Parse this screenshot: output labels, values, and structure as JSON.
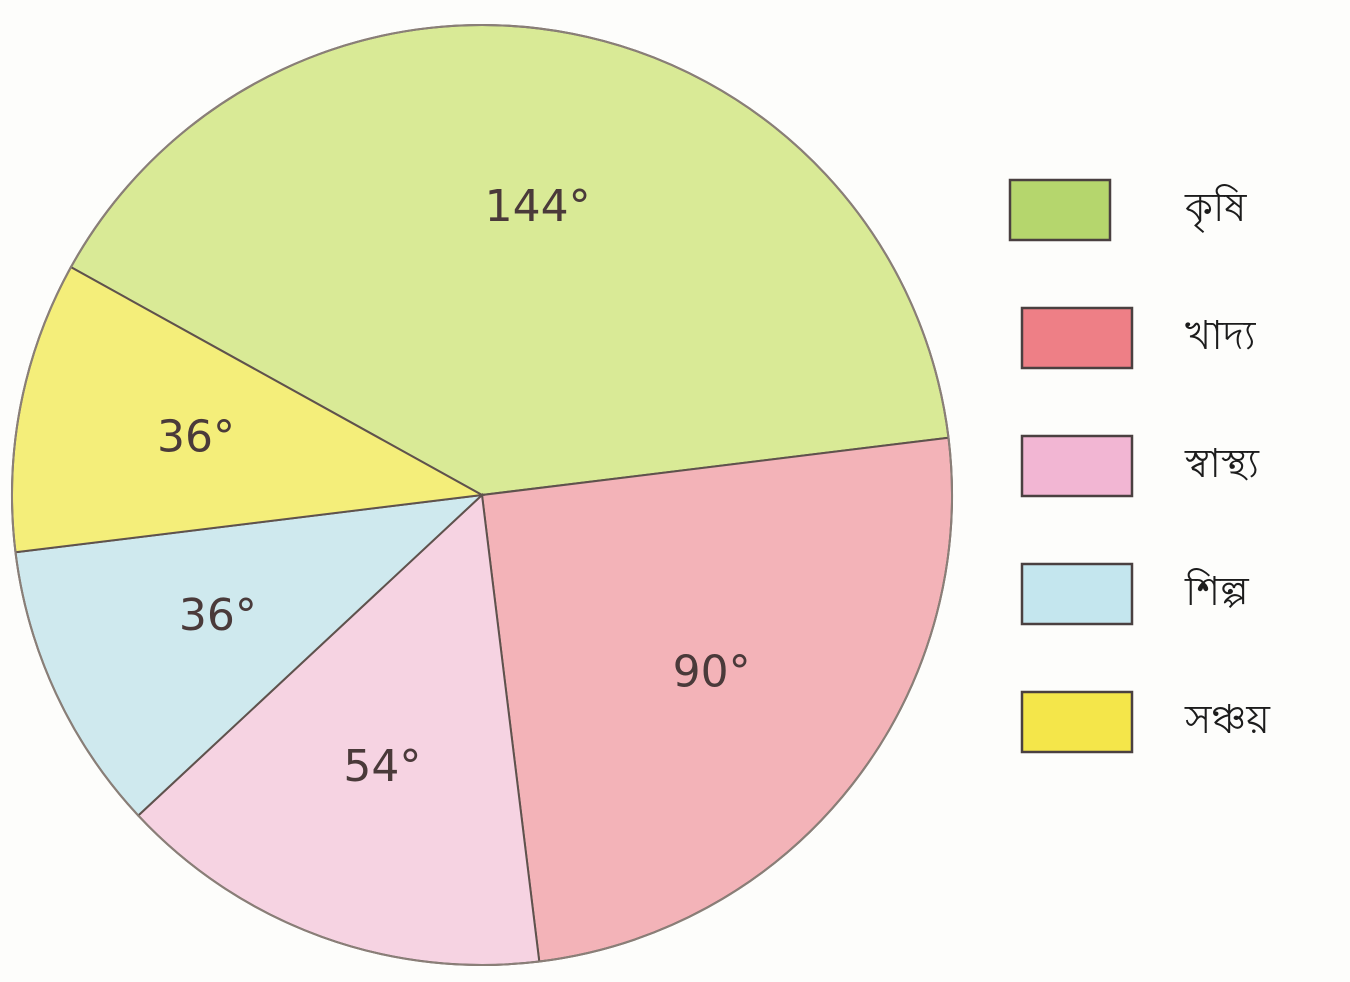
{
  "chart_data": {
    "type": "pie",
    "unit": "°",
    "slices": [
      {
        "label": "কৃষি",
        "value": 144,
        "value_label": "144°",
        "color": "#d9ea96"
      },
      {
        "label": "খাদ্য",
        "value": 90,
        "value_label": "90°",
        "color": "#f3b3b8"
      },
      {
        "label": "স্বাস্থ্য",
        "value": 54,
        "value_label": "54°",
        "color": "#f6d3e2"
      },
      {
        "label": "শিল্প",
        "value": 36,
        "value_label": "36°",
        "color": "#cfe9ee"
      },
      {
        "label": "সঞ্চয়",
        "value": 36,
        "value_label": "36°",
        "color": "#f4ee7a"
      }
    ],
    "legend": {
      "placement": "right",
      "entries": [
        {
          "label": "কৃষি",
          "color": "#b5d66d"
        },
        {
          "label": "খাদ্য",
          "color": "#ee7f86"
        },
        {
          "label": "স্বাস্থ্য",
          "color": "#f2b6d3"
        },
        {
          "label": "শিল্প",
          "color": "#c4e6ee"
        },
        {
          "label": "সঞ্চয়",
          "color": "#f4e64a"
        }
      ]
    }
  }
}
